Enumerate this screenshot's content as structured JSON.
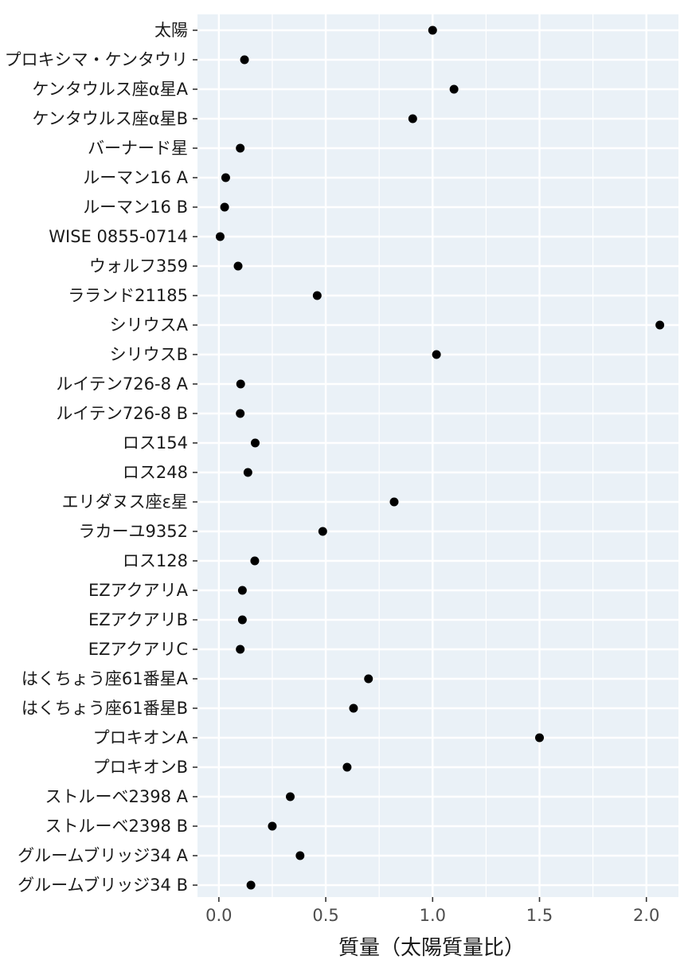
{
  "chart_data": {
    "type": "scatter",
    "title": "",
    "xlabel": "質量（太陽質量比）",
    "ylabel": "",
    "xlim": [
      -0.1,
      2.15
    ],
    "x_ticks": [
      0.0,
      0.5,
      1.0,
      1.5,
      2.0
    ],
    "x_tick_labels": [
      "0.0",
      "0.5",
      "1.0",
      "1.5",
      "2.0"
    ],
    "grid": true,
    "legend": "none",
    "background_color": "#EAF1F7",
    "grid_color": "#FFFFFF",
    "point_color": "#000000",
    "categories": [
      "太陽",
      "プロキシマ・ケンタウリ",
      "ケンタウルス座α星A",
      "ケンタウルス座α星B",
      "バーナード星",
      "ルーマン16 A",
      "ルーマン16 B",
      "WISE 0855-0714",
      "ウォルフ359",
      "ラランド21185",
      "シリウスA",
      "シリウスB",
      "ルイテン726-8 A",
      "ルイテン726-8 B",
      "ロス154",
      "ロス248",
      "エリダヌス座ε星",
      "ラカーユ9352",
      "ロス128",
      "EZアクアリA",
      "EZアクアリB",
      "EZアクアリC",
      "はくちょう座61番星A",
      "はくちょう座61番星B",
      "プロキオンA",
      "プロキオンB",
      "ストルーベ2398 A",
      "ストルーベ2398 B",
      "グルームブリッジ34 A",
      "グルームブリッジ34 B"
    ],
    "values": [
      1.0,
      0.12,
      1.1,
      0.907,
      0.1,
      0.032,
      0.027,
      0.006,
      0.09,
      0.46,
      2.063,
      1.018,
      0.102,
      0.1,
      0.17,
      0.136,
      0.82,
      0.486,
      0.168,
      0.11,
      0.11,
      0.1,
      0.7,
      0.63,
      1.5,
      0.6,
      0.334,
      0.25,
      0.38,
      0.15
    ]
  }
}
